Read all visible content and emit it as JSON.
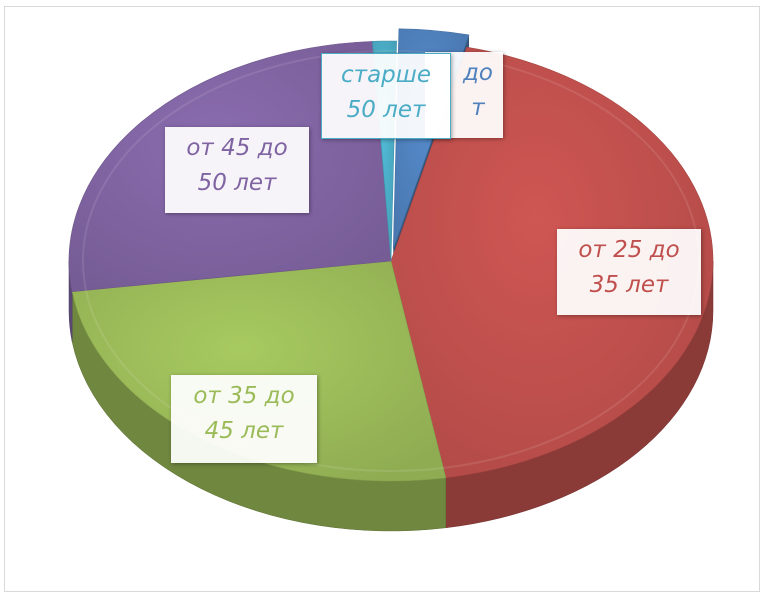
{
  "chart_data": {
    "type": "pie",
    "style": "3d-exploded-slice",
    "title": "",
    "legend": "none",
    "slices": [
      {
        "label_lines": [
          "до",
          "т"
        ],
        "label_full": "до ... т",
        "value": 3.5,
        "color": "#4f81bd"
      },
      {
        "label_lines": [
          "от 25 до",
          "35 лет"
        ],
        "value": 43.5,
        "color": "#c0504d"
      },
      {
        "label_lines": [
          "от 35 до",
          "45 лет"
        ],
        "value": 25.5,
        "color": "#9bbb59"
      },
      {
        "label_lines": [
          "от 45 до",
          "50 лет"
        ],
        "value": 26.3,
        "color": "#8064a2"
      },
      {
        "label_lines": [
          "старше",
          "50 лет"
        ],
        "value": 1.2,
        "color": "#4bacc6"
      }
    ]
  }
}
